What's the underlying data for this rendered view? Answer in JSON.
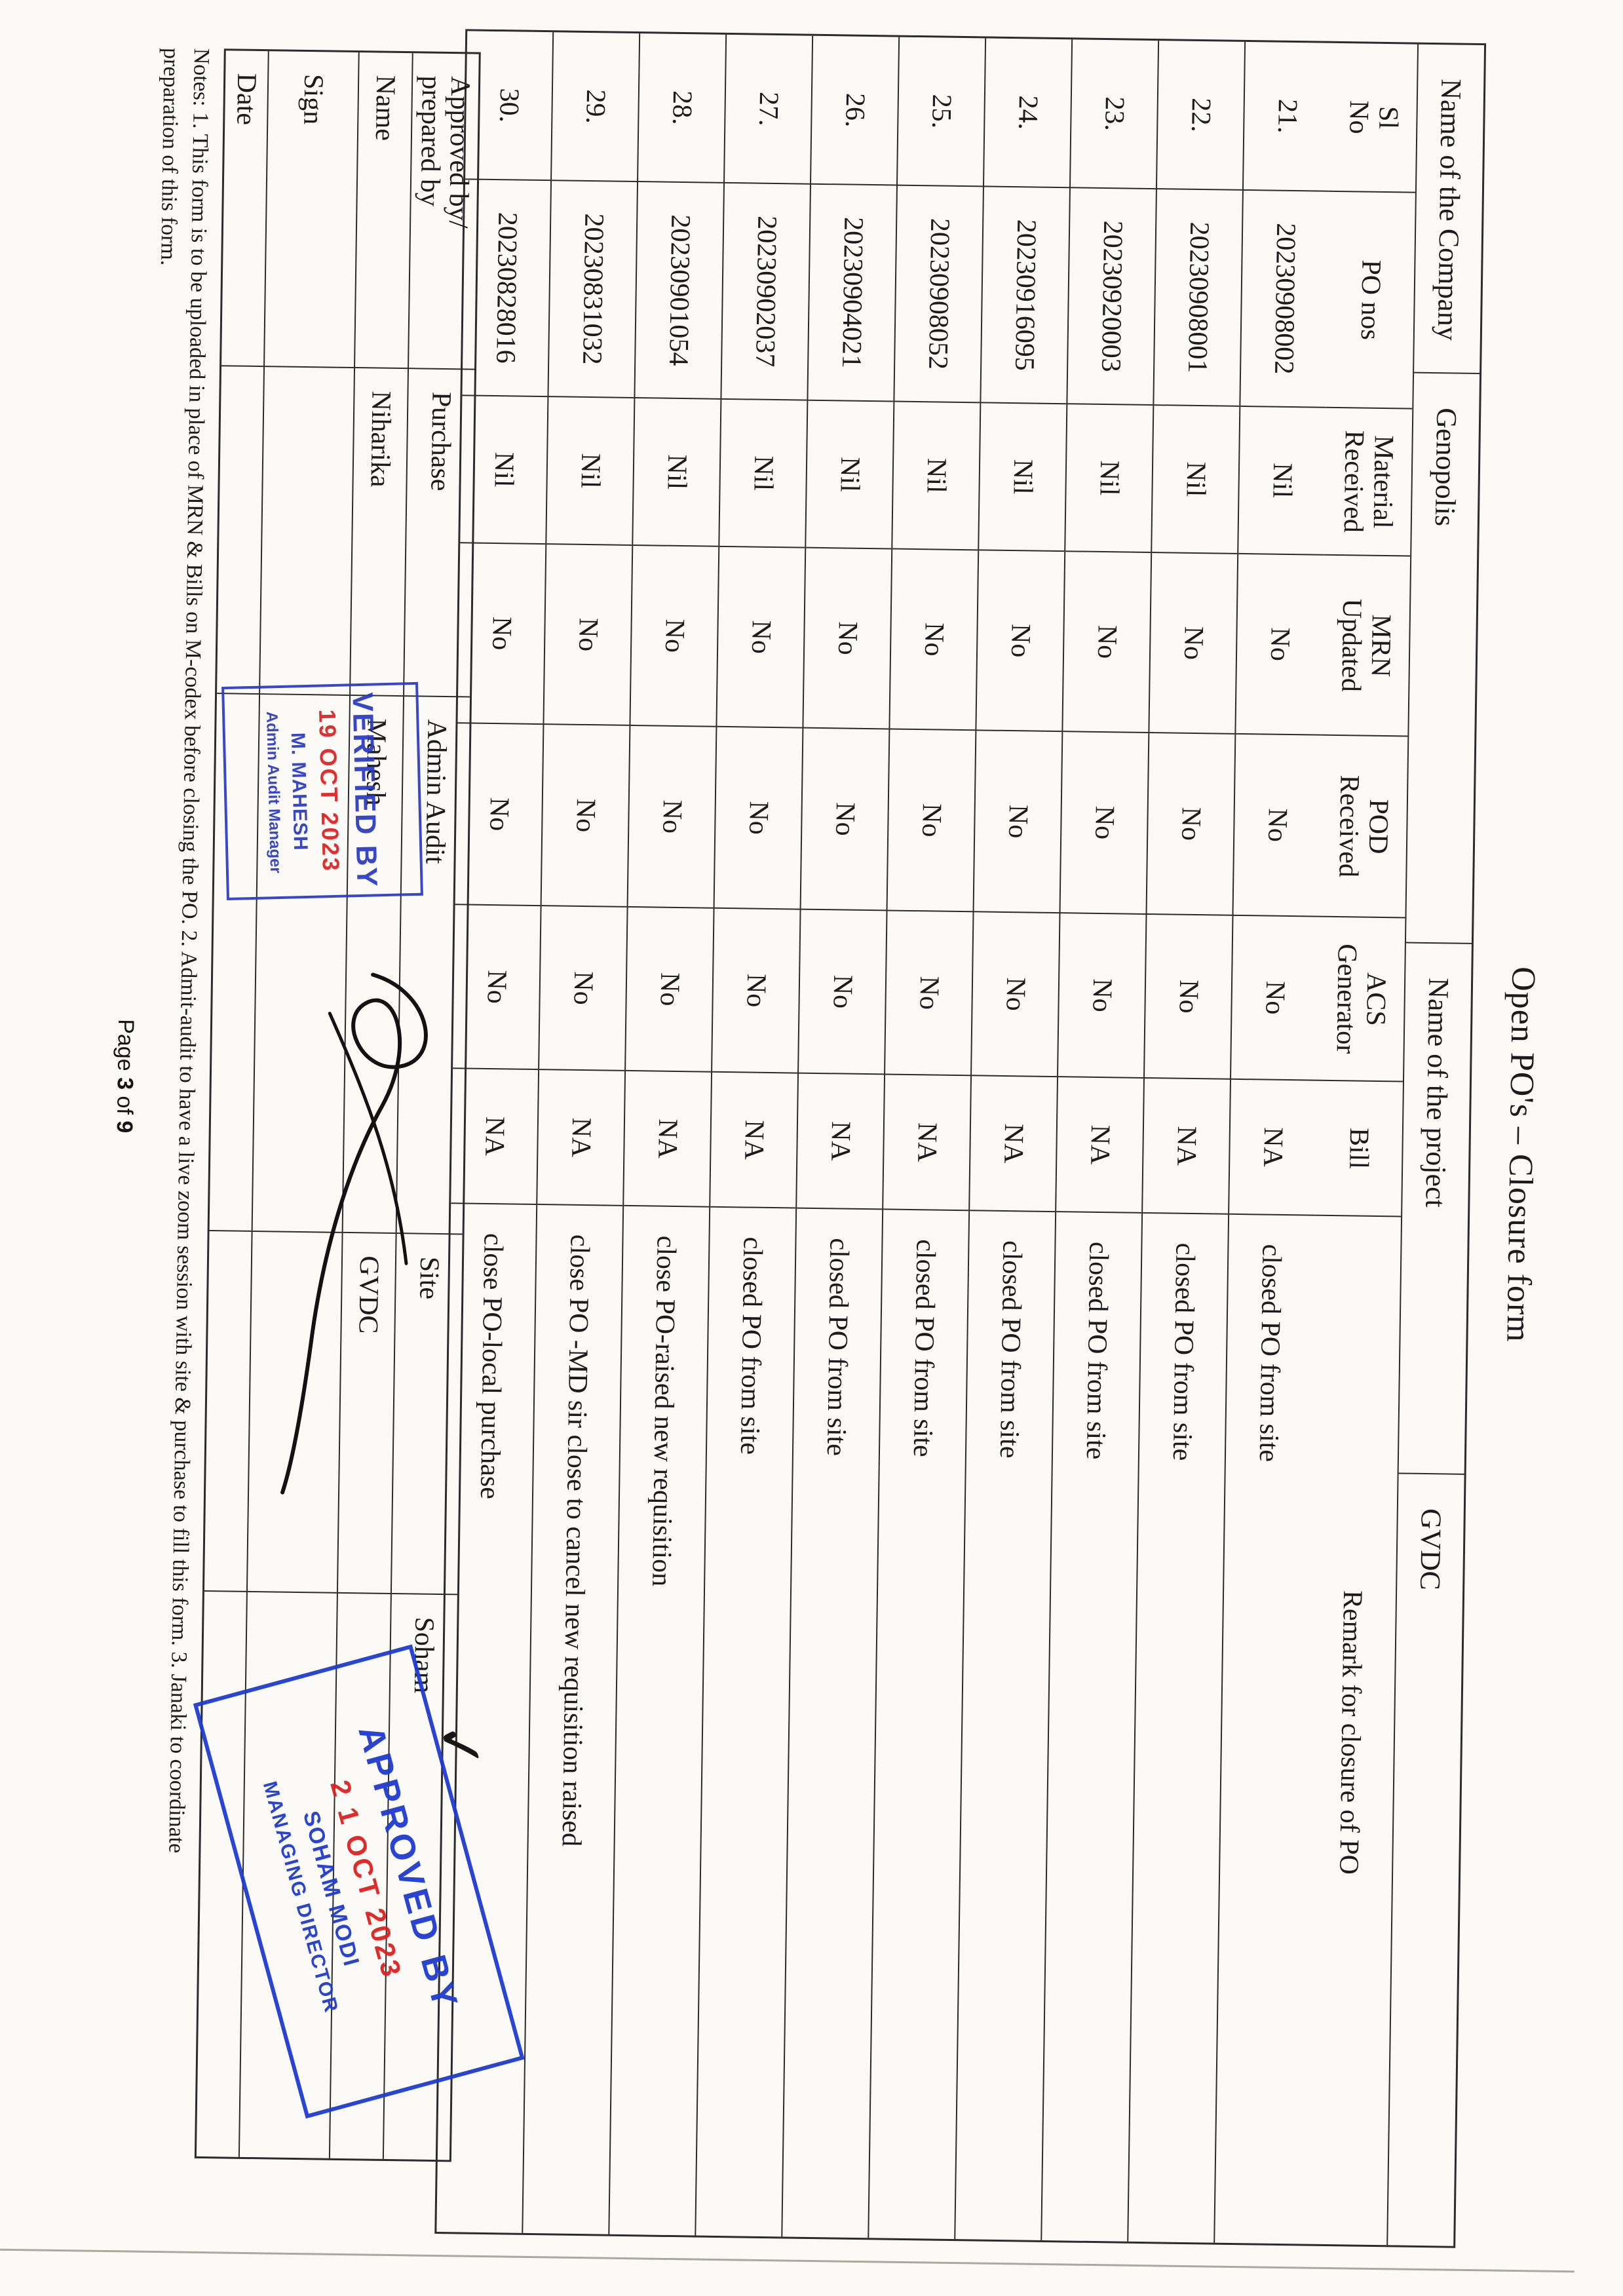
{
  "title": "Open PO's – Closure form",
  "header_band": {
    "company_label": "Name of the Company",
    "company_value": "Genopolis",
    "project_label": "Name of the project",
    "project_value": "GVDC"
  },
  "table": {
    "columns": [
      "Sl No",
      "PO nos",
      "Material Received",
      "MRN Updated",
      "POD Received",
      "ACS Generator",
      "Bill",
      "Remark for closure of PO"
    ],
    "columns_lines": [
      [
        "Sl",
        "No"
      ],
      [
        "PO nos"
      ],
      [
        "Material",
        "Received"
      ],
      [
        "MRN",
        "Updated"
      ],
      [
        "POD",
        "Received"
      ],
      [
        "ACS",
        "Generator"
      ],
      [
        "Bill"
      ],
      [
        "Remark for closure of PO"
      ]
    ],
    "rows": [
      {
        "sl": "21.",
        "po": "20230908002",
        "material": "Nil",
        "mrn": "No",
        "pod": "No",
        "acs": "No",
        "bill": "NA",
        "remark": "closed  PO from site"
      },
      {
        "sl": "22.",
        "po": "20230908001",
        "material": "Nil",
        "mrn": "No",
        "pod": "No",
        "acs": "No",
        "bill": "NA",
        "remark": "closed  PO from site"
      },
      {
        "sl": "23.",
        "po": "20230920003",
        "material": "Nil",
        "mrn": "No",
        "pod": "No",
        "acs": "No",
        "bill": "NA",
        "remark": "closed  PO from site"
      },
      {
        "sl": "24.",
        "po": "20230916095",
        "material": "Nil",
        "mrn": "No",
        "pod": "No",
        "acs": "No",
        "bill": "NA",
        "remark": "closed  PO from site"
      },
      {
        "sl": "25.",
        "po": "20230908052",
        "material": "Nil",
        "mrn": "No",
        "pod": "No",
        "acs": "No",
        "bill": "NA",
        "remark": "closed  PO from site"
      },
      {
        "sl": "26.",
        "po": "20230904021",
        "material": "Nil",
        "mrn": "No",
        "pod": "No",
        "acs": "No",
        "bill": "NA",
        "remark": "closed  PO from site"
      },
      {
        "sl": "27.",
        "po": "20230902037",
        "material": "Nil",
        "mrn": "No",
        "pod": "No",
        "acs": "No",
        "bill": "NA",
        "remark": "closed  PO from site"
      },
      {
        "sl": "28.",
        "po": "20230901054",
        "material": "Nil",
        "mrn": "No",
        "pod": "No",
        "acs": "No",
        "bill": "NA",
        "remark": "close PO-raised new requisition"
      },
      {
        "sl": "29.",
        "po": "20230831032",
        "material": "Nil",
        "mrn": "No",
        "pod": "No",
        "acs": "No",
        "bill": "NA",
        "remark": "close PO -MD sir close to cancel new requisition  raised"
      },
      {
        "sl": "30.",
        "po": "20230828016",
        "material": "Nil",
        "mrn": "No",
        "pod": "No",
        "acs": "No",
        "bill": "NA",
        "remark": "close PO-local purchase"
      }
    ]
  },
  "signature_block": {
    "corner_label_lines": [
      "Approved by/",
      "prepared by"
    ],
    "columns": [
      "Purchase",
      "Admin Audit",
      "Site",
      "Soham"
    ],
    "row_labels": [
      "Name",
      "Sign",
      "Date"
    ],
    "name_values": [
      "Niharika",
      "Mahesh",
      "GVDC",
      ""
    ],
    "checkmark": "✓"
  },
  "stamps": {
    "verified": {
      "line1": "VERIFIED BY",
      "date": "19 OCT 2023",
      "name": "M. MAHESH",
      "role": "Admin Audit Manager",
      "ink_color": "#2a3ac2",
      "date_color": "#e02020"
    },
    "approved": {
      "line1": "APPROVED BY",
      "date": "2 1 OCT 2023",
      "name": "SOHAM MODI",
      "role": "MANAGING DIRECTOR",
      "ink_color": "#1e3bd2",
      "date_color": "#e02020"
    }
  },
  "notes": {
    "line1": "Notes: 1. This form is to be uploaded in place of MRN & Bills on M-codex before closing the PO. 2. Admit-audit to have a live zoom session with site & purchase to fill this form. 3. Janaki to coordinate",
    "line2": "preparation of this form."
  },
  "footer": {
    "label_page": "Page",
    "page_number": "3",
    "label_of": "of",
    "page_total": "9"
  }
}
